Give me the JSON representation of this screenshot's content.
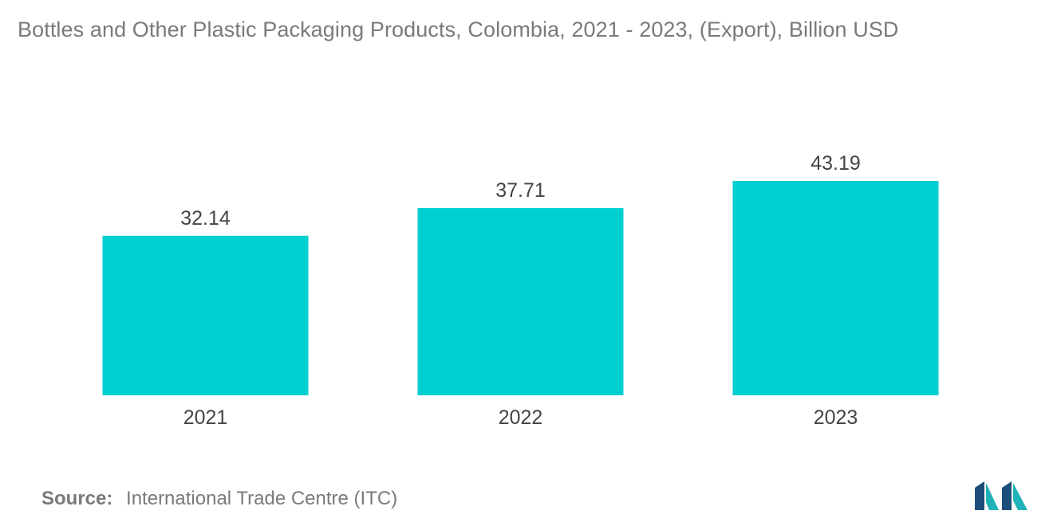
{
  "title": "Bottles and Other Plastic Packaging Products, Colombia, 2021 - 2023, (Export), Billion USD",
  "source": {
    "label": "Source:",
    "text": "International Trade Centre (ITC)"
  },
  "colors": {
    "bar": "#00cfd1",
    "logo_dark": "#1d4e7a",
    "logo_teal": "#1fb2b8"
  },
  "logo_icon": "mordor-intelligence-logo",
  "chart_data": {
    "type": "bar",
    "categories": [
      "2021",
      "2022",
      "2023"
    ],
    "values": [
      32.14,
      37.71,
      43.19
    ],
    "value_labels": [
      "32.14",
      "37.71",
      "43.19"
    ],
    "title": "Bottles and Other Plastic Packaging Products, Colombia, 2021 - 2023, (Export), Billion USD",
    "xlabel": "",
    "ylabel": "",
    "ylim": [
      0,
      43.19
    ],
    "grid": false,
    "legend": "none",
    "y_axis_visible": false
  }
}
